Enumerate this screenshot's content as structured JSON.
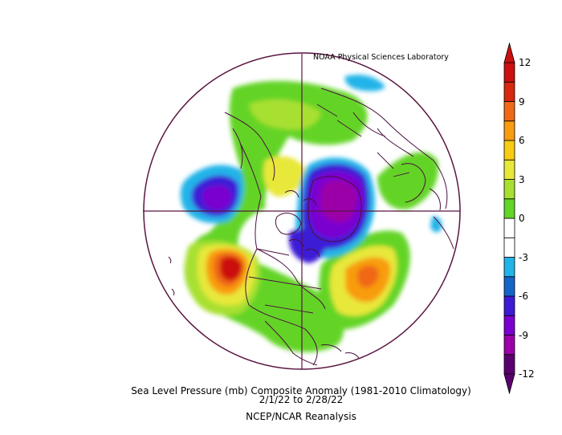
{
  "header": {
    "credit": "NOAA Physical Sciences Laboratory"
  },
  "caption": {
    "line1": "Sea Level Pressure (mb) Composite Anomaly (1981-2010 Climatology)",
    "line2": "2/1/22  to 2/28/22",
    "line3": "NCEP/NCAR Reanalysis"
  },
  "colorbar": {
    "ticks": [
      "12",
      "9",
      "6",
      "3",
      "0",
      "-3",
      "-6",
      "-9",
      "-12"
    ],
    "colors": [
      "#5a006e",
      "#9b00a8",
      "#7a00d0",
      "#3d1ad6",
      "#1565c8",
      "#20b4e8",
      "#ffffff",
      "#ffffff",
      "#63d428",
      "#a8e032",
      "#e8e83a",
      "#f8cc10",
      "#f89c10",
      "#f06818",
      "#d82810",
      "#cc1010"
    ],
    "extend": "both"
  },
  "map": {
    "projection": "north-polar-stereographic",
    "variable": "sea-level-pressure-anomaly",
    "colors": {
      "outline": "#5a1540",
      "coast": "#4a1040"
    }
  }
}
